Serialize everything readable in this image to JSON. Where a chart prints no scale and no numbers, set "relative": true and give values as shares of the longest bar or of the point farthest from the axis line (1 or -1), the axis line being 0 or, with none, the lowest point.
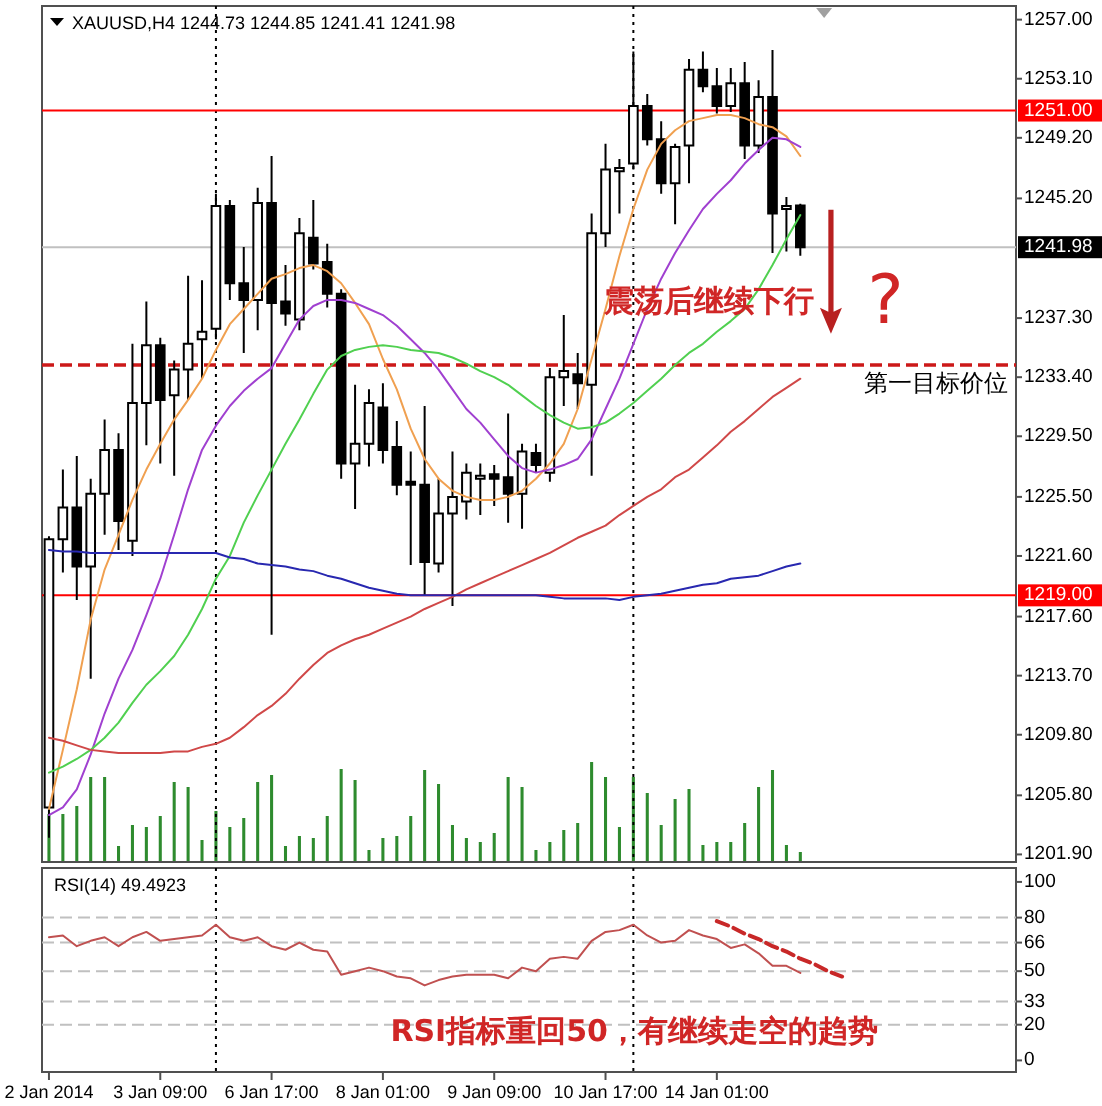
{
  "chart_data": [
    {
      "type": "candlestick",
      "title": "XAUUSD,H4 1244.73 1244.85 1241.41 1241.98",
      "categories": [
        null,
        null,
        null,
        null,
        null,
        null,
        null,
        null,
        null,
        null,
        null,
        null,
        null,
        null,
        null,
        null,
        null,
        null,
        null,
        null,
        null,
        null,
        null,
        null,
        null,
        null,
        null,
        null,
        null,
        null,
        null,
        null,
        null,
        null,
        null,
        null,
        null,
        null,
        null,
        null,
        null,
        null,
        null,
        null,
        null,
        null,
        null,
        null,
        null,
        null,
        null,
        null,
        null,
        null,
        null,
        null,
        null,
        null,
        null,
        null,
        null,
        null,
        null,
        null,
        null,
        null,
        null,
        null,
        null,
        null
      ],
      "ohlc": [
        [
          1205.0,
          1222.9,
          1203.0,
          1222.7
        ],
        [
          1222.7,
          1227.3,
          1220.5,
          1224.8
        ],
        [
          1224.8,
          1228.2,
          1218.7,
          1220.9
        ],
        [
          1220.9,
          1226.7,
          1213.5,
          1225.7
        ],
        [
          1225.7,
          1230.6,
          1223.0,
          1228.6
        ],
        [
          1228.6,
          1229.7,
          1222.0,
          1223.9
        ],
        [
          1222.6,
          1235.6,
          1221.6,
          1231.7
        ],
        [
          1231.7,
          1238.4,
          1228.9,
          1235.5
        ],
        [
          1235.5,
          1236.0,
          1227.7,
          1231.9
        ],
        [
          1232.2,
          1234.5,
          1226.9,
          1233.9
        ],
        [
          1233.9,
          1240.1,
          1231.9,
          1235.6
        ],
        [
          1235.9,
          1239.8,
          1233.3,
          1236.4
        ],
        [
          1236.6,
          1245.5,
          1235.9,
          1244.7
        ],
        [
          1244.7,
          1245.1,
          1238.5,
          1239.6
        ],
        [
          1239.6,
          1242.0,
          1235.0,
          1238.5
        ],
        [
          1238.5,
          1245.9,
          1236.5,
          1244.9
        ],
        [
          1244.9,
          1248.0,
          1216.4,
          1238.3
        ],
        [
          1238.4,
          1240.8,
          1236.8,
          1237.6
        ],
        [
          1237.2,
          1243.9,
          1236.5,
          1242.9
        ],
        [
          1242.6,
          1245.1,
          1240.5,
          1240.9
        ],
        [
          1241.0,
          1242.2,
          1238.0,
          1238.9
        ],
        [
          1238.9,
          1239.2,
          1226.7,
          1227.7
        ],
        [
          1227.7,
          1232.9,
          1224.7,
          1229.0
        ],
        [
          1229.0,
          1232.6,
          1227.5,
          1231.7
        ],
        [
          1231.4,
          1233.0,
          1227.7,
          1228.6
        ],
        [
          1228.8,
          1230.5,
          1225.6,
          1226.3
        ],
        [
          1226.5,
          1228.5,
          1221.0,
          1226.3
        ],
        [
          1226.3,
          1231.5,
          1219.0,
          1221.2
        ],
        [
          1221.1,
          1226.7,
          1220.5,
          1224.4
        ],
        [
          1224.4,
          1228.5,
          1218.3,
          1225.5
        ],
        [
          1225.2,
          1227.7,
          1224.0,
          1227.1
        ],
        [
          1226.7,
          1227.7,
          1224.3,
          1226.9
        ],
        [
          1227.0,
          1227.6,
          1224.9,
          1226.7
        ],
        [
          1226.8,
          1231.0,
          1223.8,
          1225.7
        ],
        [
          1225.7,
          1229.0,
          1223.4,
          1228.5
        ],
        [
          1228.4,
          1229.0,
          1227.1,
          1227.6
        ],
        [
          1227.1,
          1234.0,
          1226.5,
          1233.4
        ],
        [
          1233.4,
          1237.5,
          1231.5,
          1233.8
        ],
        [
          1233.6,
          1235.0,
          1231.3,
          1233.0
        ],
        [
          1232.9,
          1244.2,
          1226.9,
          1242.9
        ],
        [
          1242.9,
          1248.8,
          1242.0,
          1247.1
        ],
        [
          1247.0,
          1247.8,
          1244.2,
          1247.2
        ],
        [
          1247.5,
          1254.9,
          1247.1,
          1251.3
        ],
        [
          1251.3,
          1252.1,
          1248.7,
          1249.1
        ],
        [
          1249.1,
          1250.3,
          1245.5,
          1246.2
        ],
        [
          1246.2,
          1248.8,
          1243.5,
          1248.6
        ],
        [
          1248.7,
          1254.4,
          1246.2,
          1253.7
        ],
        [
          1253.7,
          1254.9,
          1252.2,
          1252.6
        ],
        [
          1252.6,
          1253.8,
          1250.8,
          1251.3
        ],
        [
          1251.3,
          1253.8,
          1250.9,
          1252.8
        ],
        [
          1252.8,
          1254.2,
          1247.8,
          1248.7
        ],
        [
          1248.7,
          1253.0,
          1248.2,
          1251.9
        ],
        [
          1251.9,
          1255.0,
          1241.6,
          1244.2
        ],
        [
          1244.5,
          1245.3,
          1241.7,
          1244.7
        ],
        [
          1244.73,
          1244.85,
          1241.41,
          1241.98
        ],
        null,
        null,
        null,
        null,
        null,
        null,
        null,
        null,
        null,
        null,
        null,
        null,
        null,
        null,
        null
      ],
      "color": "#000000",
      "series": [
        {
          "type": "line",
          "color": "#f0a050",
          "values": [
            1204.9,
            1208.8,
            1212.8,
            1217.4,
            1220.7,
            1223.0,
            1225.3,
            1227.3,
            1229.0,
            1230.6,
            1231.9,
            1233.3,
            1235.2,
            1236.9,
            1237.9,
            1238.9,
            1239.9,
            1240.2,
            1240.6,
            1240.8,
            1240.4,
            1239.6,
            1238.3,
            1236.9,
            1234.6,
            1232.6,
            1230.0,
            1228.0,
            1226.7,
            1225.9,
            1225.5,
            1225.3,
            1225.3,
            1225.5,
            1225.9,
            1226.7,
            1227.7,
            1229.0,
            1231.3,
            1234.6,
            1237.9,
            1241.4,
            1244.5,
            1247.1,
            1248.8,
            1249.7,
            1250.3,
            1250.5,
            1250.7,
            1250.7,
            1250.5,
            1250.1,
            1249.9,
            1249.3,
            1248.0,
            null,
            null,
            null,
            null,
            null,
            null,
            null,
            null,
            null,
            null,
            null,
            null,
            null,
            null,
            null
          ]
        },
        {
          "type": "line",
          "color": "#a040d0",
          "values": [
            1204.5,
            1205.0,
            1206.2,
            1208.5,
            1211.2,
            1213.5,
            1215.4,
            1217.7,
            1220.1,
            1223.0,
            1226.0,
            1228.6,
            1230.2,
            1231.5,
            1232.5,
            1233.3,
            1234.0,
            1235.6,
            1237.2,
            1238.1,
            1238.5,
            1238.5,
            1238.3,
            1237.9,
            1237.5,
            1236.8,
            1235.9,
            1235.0,
            1233.9,
            1232.6,
            1231.3,
            1230.4,
            1229.3,
            1228.2,
            1227.4,
            1227.1,
            1227.3,
            1227.6,
            1228.0,
            1229.3,
            1231.3,
            1233.3,
            1235.6,
            1237.9,
            1239.9,
            1241.6,
            1243.1,
            1244.5,
            1245.5,
            1246.4,
            1247.5,
            1248.4,
            1249.2,
            1249.1,
            1248.6,
            null,
            null,
            null,
            null,
            null,
            null,
            null,
            null,
            null,
            null,
            null,
            null,
            null,
            null,
            null
          ]
        },
        {
          "type": "line",
          "color": "#50d050",
          "values": [
            1207.3,
            1207.7,
            1208.2,
            1208.8,
            1209.6,
            1210.6,
            1211.9,
            1213.1,
            1214.0,
            1215.0,
            1216.4,
            1218.1,
            1220.1,
            1221.6,
            1223.8,
            1225.6,
            1227.3,
            1229.0,
            1230.6,
            1232.3,
            1233.9,
            1234.8,
            1235.2,
            1235.4,
            1235.5,
            1235.4,
            1235.2,
            1235.1,
            1235.0,
            1234.7,
            1234.3,
            1233.8,
            1233.4,
            1232.9,
            1232.2,
            1231.5,
            1230.9,
            1230.4,
            1230.0,
            1230.1,
            1230.4,
            1231.0,
            1231.7,
            1232.5,
            1233.3,
            1234.2,
            1235.0,
            1235.6,
            1236.4,
            1237.1,
            1237.9,
            1239.2,
            1240.8,
            1242.5,
            1244.1,
            null,
            null,
            null,
            null,
            null,
            null,
            null,
            null,
            null,
            null,
            null,
            null,
            null,
            null,
            null
          ]
        },
        {
          "type": "line",
          "color": "#d04848",
          "values": [
            1209.6,
            1209.4,
            1209.1,
            1208.8,
            1208.7,
            1208.6,
            1208.6,
            1208.6,
            1208.6,
            1208.7,
            1208.7,
            1209.0,
            1209.2,
            1209.6,
            1210.3,
            1211.1,
            1211.7,
            1212.5,
            1213.5,
            1214.4,
            1215.2,
            1215.7,
            1216.1,
            1216.4,
            1216.8,
            1217.2,
            1217.6,
            1218.1,
            1218.5,
            1218.9,
            1219.4,
            1219.8,
            1220.2,
            1220.6,
            1221.0,
            1221.4,
            1221.8,
            1222.3,
            1222.8,
            1223.2,
            1223.6,
            1224.3,
            1224.9,
            1225.5,
            1226.0,
            1226.8,
            1227.3,
            1228.1,
            1228.9,
            1229.8,
            1230.5,
            1231.3,
            1232.1,
            1232.7,
            1233.3,
            null,
            null,
            null,
            null,
            null,
            null,
            null,
            null,
            null,
            null,
            null,
            null,
            null,
            null,
            null
          ]
        },
        {
          "type": "line",
          "color": "#2828b0",
          "values": [
            1222.0,
            1221.9,
            1221.9,
            1221.8,
            1221.8,
            1221.8,
            1221.8,
            1221.8,
            1221.8,
            1221.8,
            1221.8,
            1221.8,
            1221.8,
            1221.5,
            1221.4,
            1221.1,
            1221.0,
            1220.9,
            1220.7,
            1220.6,
            1220.3,
            1220.1,
            1219.8,
            1219.5,
            1219.3,
            1219.1,
            1219.0,
            1219.0,
            1219.0,
            1219.0,
            1219.0,
            1219.0,
            1219.0,
            1219.0,
            1219.0,
            1219.0,
            1218.9,
            1218.8,
            1218.8,
            1218.8,
            1218.8,
            1218.7,
            1218.9,
            1219.0,
            1219.1,
            1219.3,
            1219.5,
            1219.7,
            1219.8,
            1220.1,
            1220.2,
            1220.3,
            1220.6,
            1220.9,
            1221.1,
            null,
            null,
            null,
            null,
            null,
            null,
            null,
            null,
            null,
            null,
            null,
            null,
            null,
            null,
            null
          ]
        }
      ],
      "ylim": [
        1201.4,
        1257.9
      ],
      "yticks": [
        {
          "value": 1257,
          "label": "1257.00"
        },
        {
          "value": 1253.1,
          "label": "1253.10"
        },
        {
          "value": 1249.2,
          "label": "1249.20"
        },
        {
          "value": 1245.2,
          "label": "1245.20"
        },
        {
          "value": 1237.3,
          "label": "1237.30"
        },
        {
          "value": 1233.4,
          "label": "1233.40"
        },
        {
          "value": 1229.5,
          "label": "1229.50"
        },
        {
          "value": 1225.5,
          "label": "1225.50"
        },
        {
          "value": 1221.6,
          "label": "1221.60"
        },
        {
          "value": 1217.6,
          "label": "1217.60"
        },
        {
          "value": 1213.7,
          "label": "1213.70"
        },
        {
          "value": 1209.8,
          "label": "1209.80"
        },
        {
          "value": 1205.8,
          "label": "1205.80"
        },
        {
          "value": 1201.9,
          "label": "1201.90"
        }
      ],
      "ref_lines": [
        {
          "axis": "y",
          "value": 1251,
          "label": "1251.00",
          "color": "#ff0000"
        },
        {
          "axis": "y",
          "value": 1219,
          "label": "1219.00",
          "color": "#ff0000"
        },
        {
          "axis": "y",
          "value": 1241.98,
          "label": "1241.98",
          "color": "#c0c0c0"
        },
        {
          "axis": "y",
          "value": 1234.2,
          "label": "第一目标价位",
          "color": "#cc1818",
          "line_style": "dashed"
        }
      ],
      "annotations": [
        "震荡后继续下行",
        "?"
      ]
    },
    {
      "type": "bar",
      "relative": true,
      "categories": [
        null,
        null,
        null,
        null,
        null,
        null,
        null,
        null,
        null,
        null,
        null,
        null,
        null,
        null,
        null,
        null,
        null,
        null,
        null,
        null,
        null,
        null,
        null,
        null,
        null,
        null,
        null,
        null,
        null,
        null,
        null,
        null,
        null,
        null,
        null,
        null,
        null,
        null,
        null,
        null,
        null,
        null,
        null,
        null,
        null,
        null,
        null,
        null,
        null,
        null,
        null,
        null,
        null,
        null,
        null,
        null,
        null,
        null,
        null,
        null,
        null,
        null,
        null,
        null,
        null,
        null,
        null,
        null,
        null,
        null
      ],
      "values": [
        0.48,
        0.48,
        0.56,
        0.85,
        0.85,
        0.16,
        0.37,
        0.35,
        0.46,
        0.8,
        0.75,
        0.22,
        0.51,
        0.35,
        0.44,
        0.8,
        0.87,
        0.16,
        0.26,
        0.24,
        0.46,
        0.93,
        0.82,
        0.12,
        0.24,
        0.26,
        0.46,
        0.92,
        0.78,
        0.37,
        0.24,
        0.2,
        0.29,
        0.85,
        0.75,
        0.12,
        0.2,
        0.32,
        0.39,
        1,
        0.85,
        0.35,
        0.85,
        0.69,
        0.37,
        0.63,
        0.73,
        0.17,
        0.2,
        0.2,
        0.39,
        0.75,
        0.92,
        0.17,
        0.1,
        null,
        null,
        null,
        null,
        null,
        null,
        null,
        null,
        null,
        null,
        null,
        null,
        null,
        null,
        null
      ],
      "color": "#2e8b2e"
    },
    {
      "type": "line",
      "title": "RSI(14) 49.4923",
      "categories": [
        "2 Jan 2014",
        null,
        null,
        null,
        null,
        null,
        null,
        null,
        "3 Jan 09:00",
        null,
        null,
        null,
        null,
        null,
        null,
        null,
        "6 Jan 17:00",
        null,
        null,
        null,
        null,
        null,
        null,
        null,
        "8 Jan 01:00",
        null,
        null,
        null,
        null,
        null,
        null,
        null,
        "9 Jan 09:00",
        null,
        null,
        null,
        null,
        null,
        null,
        null,
        "10 Jan 17:00",
        null,
        null,
        null,
        null,
        null,
        null,
        null,
        "14 Jan 01:00",
        null,
        null,
        null,
        null,
        null,
        null,
        null,
        null,
        null,
        null,
        null,
        null,
        null,
        null,
        null,
        null,
        null,
        null,
        null,
        null,
        null
      ],
      "series": [
        {
          "color": "#c05050",
          "values": [
            69,
            70,
            64,
            67,
            69,
            64,
            69,
            72,
            67,
            68,
            69,
            70,
            76,
            69,
            67,
            69,
            64,
            62,
            66,
            62,
            61,
            48,
            50,
            52,
            50,
            47,
            46,
            42,
            45,
            47,
            48,
            48,
            48,
            46,
            52,
            50,
            57,
            58,
            57,
            67,
            72,
            73,
            76,
            70,
            66,
            67,
            73,
            70,
            68,
            63,
            65,
            60,
            53,
            53,
            49,
            null,
            null,
            null,
            null,
            null,
            null,
            null,
            null,
            null,
            null,
            null,
            null,
            null,
            null,
            null
          ]
        },
        {
          "type": "line",
          "color": "#c82828",
          "line_style": "dashed",
          "values": [
            null,
            null,
            null,
            null,
            null,
            null,
            null,
            null,
            null,
            null,
            null,
            null,
            null,
            null,
            null,
            null,
            null,
            null,
            null,
            null,
            null,
            null,
            null,
            null,
            null,
            null,
            null,
            null,
            null,
            null,
            null,
            null,
            null,
            null,
            null,
            null,
            null,
            null,
            null,
            null,
            null,
            null,
            null,
            null,
            null,
            null,
            null,
            null,
            78,
            75,
            71,
            68,
            64,
            61,
            57,
            54,
            50,
            47,
            null,
            null,
            null,
            null,
            null,
            null,
            null,
            null,
            null,
            null,
            null,
            null
          ]
        }
      ],
      "ylim": [
        -6.5,
        107.8
      ],
      "yticks": [
        0,
        20,
        33,
        50,
        66,
        80,
        100
      ],
      "ref_lines": [
        {
          "axis": "y",
          "value": 20,
          "color": "#c0c0c0",
          "line_style": "dashed"
        },
        {
          "axis": "y",
          "value": 33,
          "color": "#c0c0c0",
          "line_style": "dashed"
        },
        {
          "axis": "y",
          "value": 50,
          "color": "#c0c0c0",
          "line_style": "dashed"
        },
        {
          "axis": "y",
          "value": 66,
          "color": "#c0c0c0",
          "line_style": "dashed"
        },
        {
          "axis": "y",
          "value": 80,
          "color": "#c0c0c0",
          "line_style": "dashed"
        }
      ],
      "annotations": [
        "RSI指标重回50，有继续走空的趋势"
      ]
    }
  ]
}
